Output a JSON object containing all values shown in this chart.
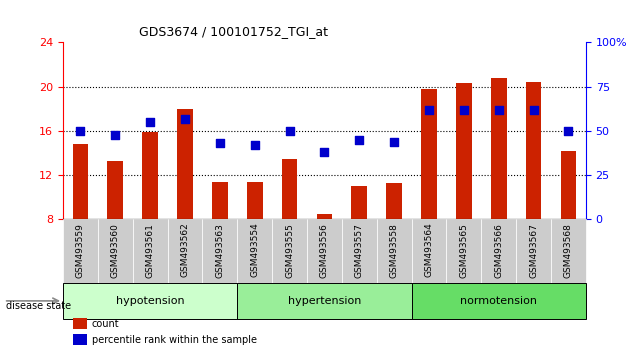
{
  "title": "GDS3674 / 100101752_TGI_at",
  "samples": [
    "GSM493559",
    "GSM493560",
    "GSM493561",
    "GSM493562",
    "GSM493563",
    "GSM493554",
    "GSM493555",
    "GSM493556",
    "GSM493557",
    "GSM493558",
    "GSM493564",
    "GSM493565",
    "GSM493566",
    "GSM493567",
    "GSM493568"
  ],
  "bar_values": [
    14.8,
    13.3,
    15.9,
    18.0,
    11.4,
    11.4,
    13.5,
    8.5,
    11.0,
    11.3,
    19.8,
    20.3,
    20.8,
    20.4,
    14.2
  ],
  "dot_values": [
    50,
    48,
    55,
    57,
    43,
    42,
    50,
    38,
    45,
    44,
    62,
    62,
    62,
    62,
    50
  ],
  "groups": [
    {
      "label": "hypotension",
      "start": 0,
      "end": 5
    },
    {
      "label": "hypertension",
      "start": 5,
      "end": 10
    },
    {
      "label": "normotension",
      "start": 10,
      "end": 15
    }
  ],
  "group_colors": [
    "#ccffcc",
    "#99ee99",
    "#66dd66"
  ],
  "ylim_left": [
    8,
    24
  ],
  "ylim_right": [
    0,
    100
  ],
  "yticks_left": [
    8,
    12,
    16,
    20,
    24
  ],
  "yticks_right": [
    0,
    25,
    50,
    75,
    100
  ],
  "bar_color": "#cc2200",
  "dot_color": "#0000cc",
  "bg_color": "white",
  "legend_count_color": "#cc2200",
  "legend_pct_color": "#0000cc",
  "xticklabel_bg": "#cccccc",
  "bar_width": 0.45,
  "dot_size": 28
}
